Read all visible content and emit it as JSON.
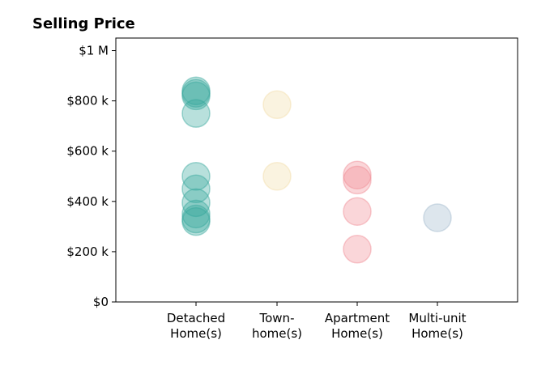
{
  "chart_data": {
    "type": "scatter",
    "title": "Selling Price",
    "xlabel": "",
    "ylabel": "",
    "categories": [
      [
        "Detached",
        "Home(s)"
      ],
      [
        "Town-",
        "home(s)"
      ],
      [
        "Apartment",
        "Home(s)"
      ],
      [
        "Multi-unit",
        "Home(s)"
      ]
    ],
    "y_ticks": [
      {
        "value": 0,
        "label": "$0"
      },
      {
        "value": 200000,
        "label": "$200 k"
      },
      {
        "value": 400000,
        "label": "$400 k"
      },
      {
        "value": 600000,
        "label": "$600 k"
      },
      {
        "value": 800000,
        "label": "$800 k"
      },
      {
        "value": 1000000,
        "label": "$1 M"
      }
    ],
    "ylim": [
      0,
      1050000
    ],
    "grid": false,
    "legend": "none",
    "series": [
      {
        "category_index": 0,
        "color": "#35a79c",
        "values": [
          840000,
          830000,
          820000,
          750000,
          500000,
          450000,
          395000,
          350000,
          330000,
          320000
        ]
      },
      {
        "category_index": 1,
        "color": "#f2dca6",
        "values": [
          785000,
          500000
        ]
      },
      {
        "category_index": 2,
        "color": "#f08a92",
        "values": [
          505000,
          485000,
          360000,
          210000
        ]
      },
      {
        "category_index": 3,
        "color": "#9fb7cb",
        "values": [
          335000
        ]
      }
    ]
  }
}
